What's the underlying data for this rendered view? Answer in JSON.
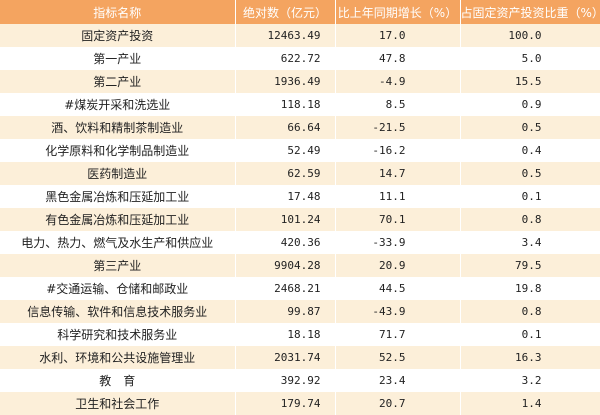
{
  "table": {
    "header": [
      "指标名称",
      "绝对数（亿元）",
      "比上年同期增长（%）",
      "占固定资产投资比重（%）"
    ],
    "rows": [
      [
        "固定资产投资",
        "12463.49",
        "17.0",
        "100.0"
      ],
      [
        "第一产业",
        "622.72",
        "47.8",
        "5.0"
      ],
      [
        "第二产业",
        "1936.49",
        "-4.9",
        "15.5"
      ],
      [
        "#煤炭开采和洗选业",
        "118.18",
        "8.5",
        "0.9"
      ],
      [
        "酒、饮料和精制茶制造业",
        "66.64",
        "-21.5",
        "0.5"
      ],
      [
        "化学原料和化学制品制造业",
        "52.49",
        "-16.2",
        "0.4"
      ],
      [
        "医药制造业",
        "62.59",
        "14.7",
        "0.5"
      ],
      [
        "黑色金属冶炼和压延加工业",
        "17.48",
        "11.1",
        "0.1"
      ],
      [
        "有色金属冶炼和压延加工业",
        "101.24",
        "70.1",
        "0.8"
      ],
      [
        "电力、热力、燃气及水生产和供应业",
        "420.36",
        "-33.9",
        "3.4"
      ],
      [
        "第三产业",
        "9904.28",
        "20.9",
        "79.5"
      ],
      [
        "#交通运输、仓储和邮政业",
        "2468.21",
        "44.5",
        "19.8"
      ],
      [
        "信息传输、软件和信息技术服务业",
        "99.87",
        "-43.9",
        "0.8"
      ],
      [
        "科学研究和技术服务业",
        "18.18",
        "71.7",
        "0.1"
      ],
      [
        "水利、环境和公共设施管理业",
        "2031.74",
        "52.5",
        "16.3"
      ],
      [
        "教　育",
        "392.92",
        "23.4",
        "3.2"
      ],
      [
        "卫生和社会工作",
        "179.74",
        "20.7",
        "1.4"
      ]
    ]
  }
}
